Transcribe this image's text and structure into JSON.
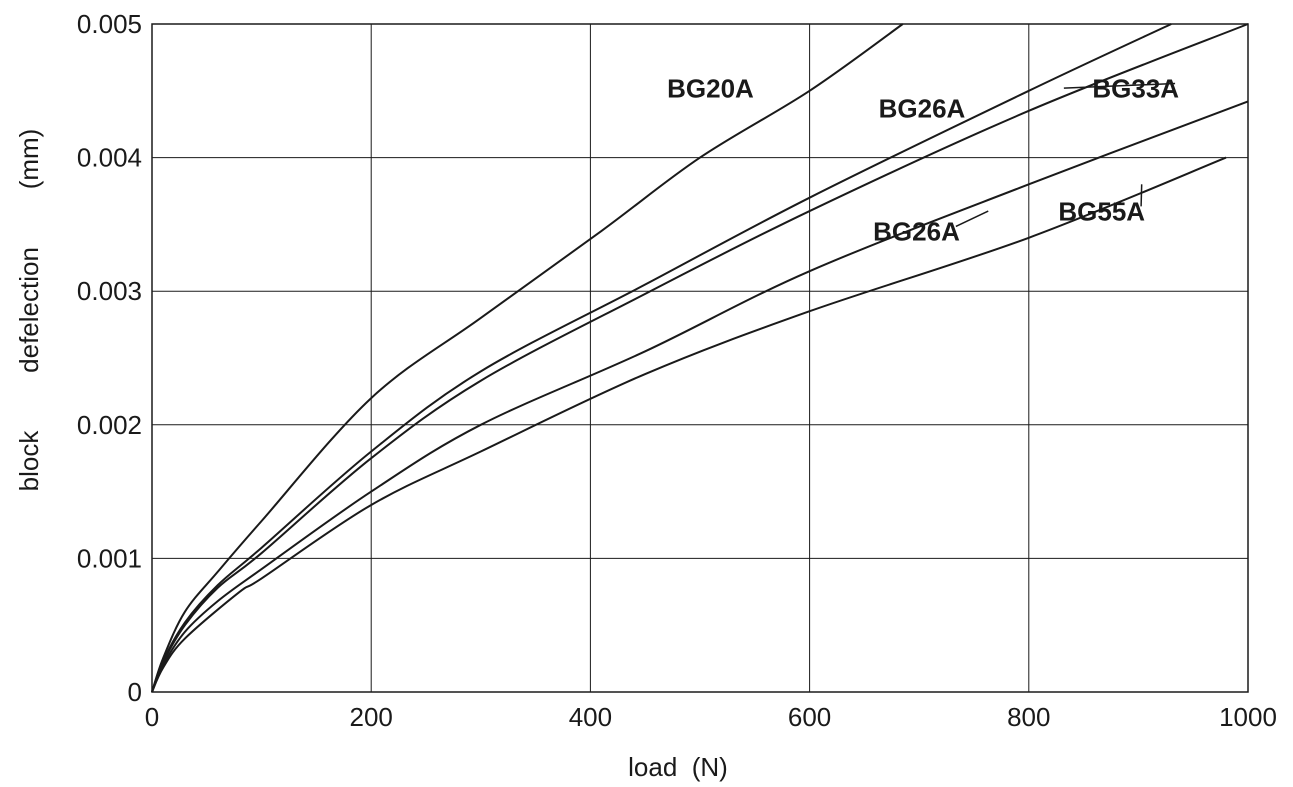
{
  "chart_data": {
    "type": "line",
    "title": "",
    "xlabel": "load  (N)",
    "ylabel": "block        defelection        (mm)",
    "xlim": [
      0,
      1000
    ],
    "ylim": [
      0,
      0.005
    ],
    "x_ticks": [
      "0",
      "200",
      "400",
      "600",
      "800",
      "1000"
    ],
    "y_ticks": [
      "0",
      "0.001",
      "0.002",
      "0.003",
      "0.004",
      "0.005"
    ],
    "grid": true,
    "legend": "none",
    "series": [
      {
        "name": "BG20A",
        "x": [
          0,
          10,
          30,
          60,
          100,
          200,
          300,
          410,
          500,
          600,
          685
        ],
        "y": [
          0,
          0.00025,
          0.0006,
          0.0009,
          0.00128,
          0.0022,
          0.0028,
          0.00345,
          0.004,
          0.0045,
          0.005
        ],
        "label_at": [
          470,
          0.00445
        ],
        "label_anchor": "start",
        "leader_to": null
      },
      {
        "name": "BG26A",
        "x": [
          0,
          10,
          30,
          60,
          100,
          200,
          300,
          450,
          600,
          800,
          930
        ],
        "y": [
          0,
          0.00023,
          0.00052,
          0.0008,
          0.00108,
          0.0018,
          0.0024,
          0.00305,
          0.0037,
          0.0045,
          0.005
        ],
        "label_at": [
          663,
          0.0043
        ],
        "label_anchor": "start",
        "leader_to": null
      },
      {
        "name": "BG33A",
        "x": [
          0,
          10,
          30,
          60,
          100,
          200,
          300,
          450,
          600,
          800,
          1000
        ],
        "y": [
          0,
          0.00022,
          0.0005,
          0.00078,
          0.00104,
          0.00175,
          0.00233,
          0.00298,
          0.0036,
          0.00435,
          0.005
        ],
        "label_at": [
          858,
          0.00445
        ],
        "label_anchor": "start",
        "leader_to": [
          832,
          0.00452
        ]
      },
      {
        "name": "BG26A",
        "x": [
          0,
          10,
          30,
          60,
          100,
          200,
          300,
          450,
          600,
          800,
          1000
        ],
        "y": [
          0,
          0.0002,
          0.00045,
          0.00068,
          0.00092,
          0.0015,
          0.002,
          0.00255,
          0.00315,
          0.0038,
          0.00442
        ],
        "label_at": [
          658,
          0.00338
        ],
        "label_anchor": "start",
        "leader_to": [
          763,
          0.0036
        ]
      },
      {
        "name": "BG55A",
        "x": [
          0,
          10,
          30,
          80,
          100,
          200,
          300,
          450,
          600,
          800,
          980
        ],
        "y": [
          0,
          0.00018,
          0.0004,
          0.00075,
          0.00085,
          0.0014,
          0.0018,
          0.00238,
          0.00285,
          0.0034,
          0.004
        ],
        "label_at": [
          827,
          0.00353
        ],
        "label_anchor": "start",
        "leader_to": [
          903,
          0.0038
        ]
      }
    ]
  }
}
